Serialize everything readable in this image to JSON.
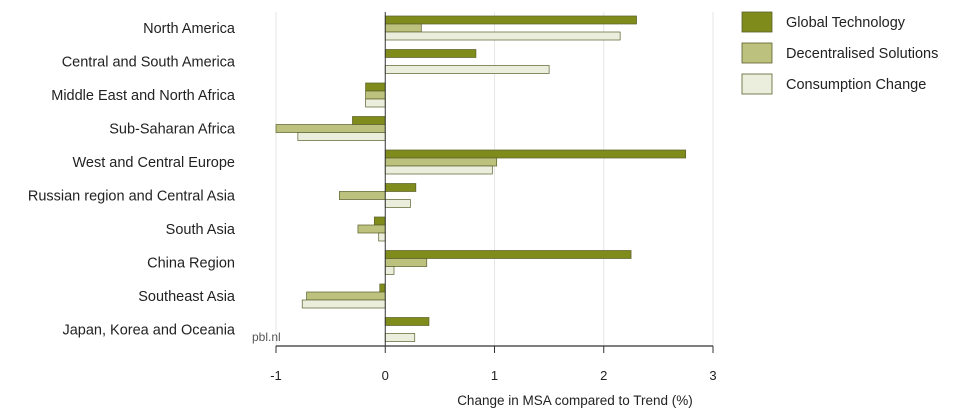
{
  "chart_data": {
    "type": "bar",
    "orientation": "horizontal",
    "categories": [
      "North America",
      "Central and South America",
      "Middle East and North Africa",
      "Sub-Saharan Africa",
      "West and Central Europe",
      "Russian region and Central Asia",
      "South Asia",
      "China Region",
      "Southeast Asia",
      "Japan, Korea and Oceania"
    ],
    "series": [
      {
        "name": "Global Technology",
        "color": "#7f8c1c",
        "values": [
          2.3,
          0.83,
          -0.18,
          -0.3,
          2.75,
          0.28,
          -0.1,
          2.25,
          -0.05,
          0.4
        ]
      },
      {
        "name": "Decentralised Solutions",
        "color": "#bcc17d",
        "values": [
          0.33,
          0.0,
          -0.18,
          -1.0,
          1.02,
          -0.42,
          -0.25,
          0.38,
          -0.72,
          0.0
        ]
      },
      {
        "name": "Consumption Change",
        "color": "#eceedd",
        "values": [
          2.15,
          1.5,
          -0.18,
          -0.8,
          0.98,
          0.23,
          -0.06,
          0.08,
          -0.76,
          0.27
        ]
      }
    ],
    "xlabel": "Change in MSA compared to Trend (%)",
    "xlim": [
      -1,
      3
    ],
    "xticks": [
      -1,
      0,
      1,
      2,
      3
    ],
    "grid": "vertical",
    "legend": "right",
    "source": "pbl.nl"
  }
}
